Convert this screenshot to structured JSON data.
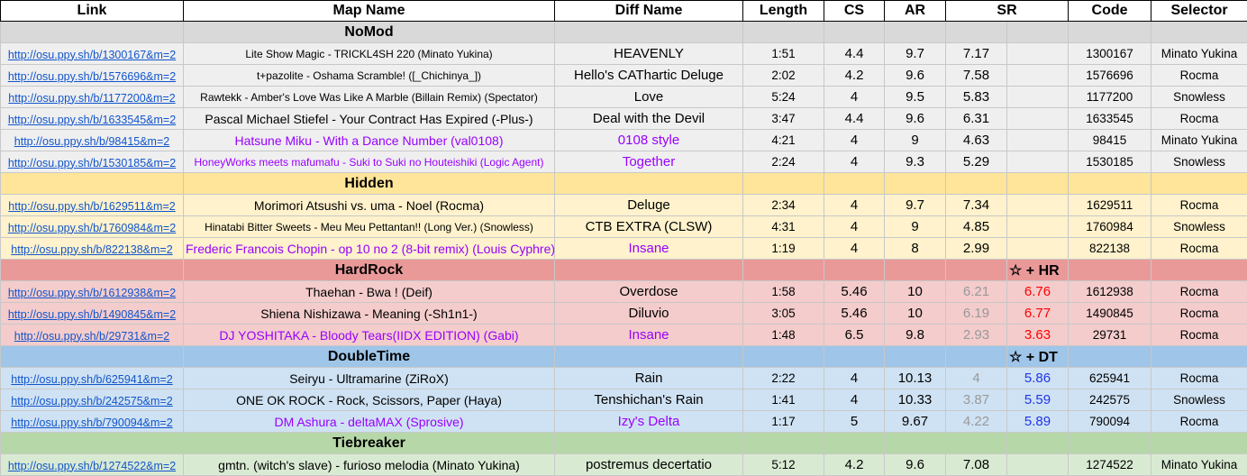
{
  "headers": {
    "link": "Link",
    "map": "Map Name",
    "diff": "Diff Name",
    "length": "Length",
    "cs": "CS",
    "ar": "AR",
    "sr": "SR",
    "code": "Code",
    "selector": "Selector"
  },
  "sections": {
    "nomod": {
      "title": "NoMod",
      "note": ""
    },
    "hidden": {
      "title": "Hidden",
      "note": ""
    },
    "hardrock": {
      "title": "HardRock",
      "note": "☆ + HR"
    },
    "doubletime": {
      "title": "DoubleTime",
      "note": "☆ + DT"
    },
    "tiebreaker": {
      "title": "Tiebreaker",
      "note": ""
    }
  },
  "rows": [
    {
      "link": "http://osu.ppy.sh/b/1300167&m=2",
      "map": "Lite Show Magic - TRICKL4SH 220 (Minato Yukina)",
      "diff": "HEAVENLY",
      "length": "1:51",
      "cs": "4.4",
      "ar": "9.7",
      "sr": "7.17",
      "sr2": "",
      "code": "1300167",
      "selector": "Minato Yukina"
    },
    {
      "link": "http://osu.ppy.sh/b/1576696&m=2",
      "map": "t+pazolite - Oshama Scramble! ([_Chichinya_])",
      "diff": "Hello's CAThartic Deluge",
      "length": "2:02",
      "cs": "4.2",
      "ar": "9.6",
      "sr": "7.58",
      "sr2": "",
      "code": "1576696",
      "selector": "Rocma"
    },
    {
      "link": "http://osu.ppy.sh/b/1177200&m=2",
      "map": "Rawtekk - Amber's Love Was Like A Marble (Billain Remix) (Spectator)",
      "diff": "Love",
      "length": "5:24",
      "cs": "4",
      "ar": "9.5",
      "sr": "5.83",
      "sr2": "",
      "code": "1177200",
      "selector": "Snowless"
    },
    {
      "link": "http://osu.ppy.sh/b/1633545&m=2",
      "map": "Pascal Michael Stiefel - Your Contract Has Expired (-Plus-)",
      "diff": "Deal with the Devil",
      "length": "3:47",
      "cs": "4.4",
      "ar": "9.6",
      "sr": "6.31",
      "sr2": "",
      "code": "1633545",
      "selector": "Rocma"
    },
    {
      "link": "http://osu.ppy.sh/b/98415&m=2",
      "map": "Hatsune Miku - With a Dance Number (val0108)",
      "diff": "0108 style",
      "length": "4:21",
      "cs": "4",
      "ar": "9",
      "sr": "4.63",
      "sr2": "",
      "code": "98415",
      "selector": "Minato Yukina"
    },
    {
      "link": "http://osu.ppy.sh/b/1530185&m=2",
      "map": "HoneyWorks meets mafumafu - Suki to Suki no Houteishiki (Logic Agent)",
      "diff": "Together",
      "length": "2:24",
      "cs": "4",
      "ar": "9.3",
      "sr": "5.29",
      "sr2": "",
      "code": "1530185",
      "selector": "Snowless"
    },
    {
      "link": "http://osu.ppy.sh/b/1629511&m=2",
      "map": "Morimori Atsushi vs. uma - Noel (Rocma)",
      "diff": "Deluge",
      "length": "2:34",
      "cs": "4",
      "ar": "9.7",
      "sr": "7.34",
      "sr2": "",
      "code": "1629511",
      "selector": "Rocma"
    },
    {
      "link": "http://osu.ppy.sh/b/1760984&m=2",
      "map": "Hinatabi Bitter Sweets - Meu Meu Pettantan!! (Long Ver.) (Snowless)",
      "diff": "CTB EXTRA (CLSW)",
      "length": "4:31",
      "cs": "4",
      "ar": "9",
      "sr": "4.85",
      "sr2": "",
      "code": "1760984",
      "selector": "Snowless"
    },
    {
      "link": "http://osu.ppy.sh/b/822138&m=2",
      "map": "Frederic Francois Chopin - op 10 no 2 (8-bit remix) (Louis Cyphre)",
      "diff": "Insane",
      "length": "1:19",
      "cs": "4",
      "ar": "8",
      "sr": "2.99",
      "sr2": "",
      "code": "822138",
      "selector": "Rocma"
    },
    {
      "link": "http://osu.ppy.sh/b/1612938&m=2",
      "map": "Thaehan - Bwa ! (Deif)",
      "diff": "Overdose",
      "length": "1:58",
      "cs": "5.46",
      "ar": "10",
      "sr": "6.21",
      "sr2": "6.76",
      "code": "1612938",
      "selector": "Rocma"
    },
    {
      "link": "http://osu.ppy.sh/b/1490845&m=2",
      "map": "Shiena Nishizawa - Meaning (-Sh1n1-)",
      "diff": "Diluvio",
      "length": "3:05",
      "cs": "5.46",
      "ar": "10",
      "sr": "6.19",
      "sr2": "6.77",
      "code": "1490845",
      "selector": "Rocma"
    },
    {
      "link": "http://osu.ppy.sh/b/29731&m=2",
      "map": "DJ YOSHITAKA - Bloody Tears(IIDX EDITION) (Gabi)",
      "diff": "Insane",
      "length": "1:48",
      "cs": "6.5",
      "ar": "9.8",
      "sr": "2.93",
      "sr2": "3.63",
      "code": "29731",
      "selector": "Rocma"
    },
    {
      "link": "http://osu.ppy.sh/b/625941&m=2",
      "map": "Seiryu - Ultramarine (ZiRoX)",
      "diff": "Rain",
      "length": "2:22",
      "cs": "4",
      "ar": "10.13",
      "sr": "4",
      "sr2": "5.86",
      "code": "625941",
      "selector": "Rocma"
    },
    {
      "link": "http://osu.ppy.sh/b/242575&m=2",
      "map": "ONE OK ROCK - Rock, Scissors, Paper (Haya)",
      "diff": "Tenshichan's Rain",
      "length": "1:41",
      "cs": "4",
      "ar": "10.33",
      "sr": "3.87",
      "sr2": "5.59",
      "code": "242575",
      "selector": "Snowless"
    },
    {
      "link": "http://osu.ppy.sh/b/790094&m=2",
      "map": "DM Ashura - deltaMAX (Sprosive)",
      "diff": "Izy's Delta",
      "length": "1:17",
      "cs": "5",
      "ar": "9.67",
      "sr": "4.22",
      "sr2": "5.89",
      "code": "790094",
      "selector": "Rocma"
    },
    {
      "link": "http://osu.ppy.sh/b/1274522&m=2",
      "map": "gmtn. (witch's slave) - furioso melodia (Minato Yukina)",
      "diff": "postremus decertatio",
      "length": "5:12",
      "cs": "4.2",
      "ar": "9.6",
      "sr": "7.08",
      "sr2": "",
      "code": "1274522",
      "selector": "Minato Yukina"
    }
  ]
}
